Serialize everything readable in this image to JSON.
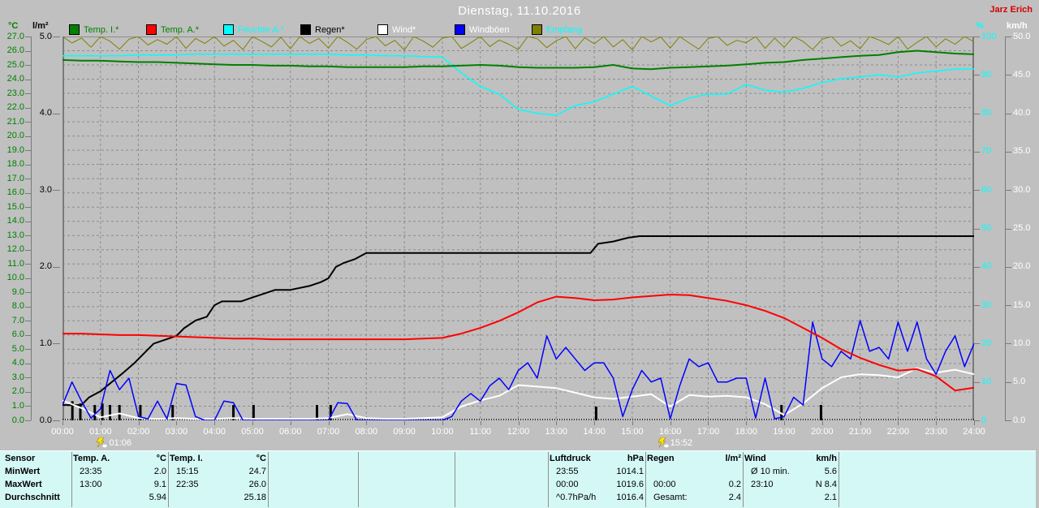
{
  "header": {
    "title": "Dienstag, 11.10.2016",
    "station": "Jarz Erich"
  },
  "legend": [
    {
      "label": "Temp. I.*",
      "swatch": "#008000",
      "text_color": "#008000"
    },
    {
      "label": "Temp. A.*",
      "swatch": "#ff0000",
      "text_color": "#008000"
    },
    {
      "label": "Feuchte A.*",
      "swatch": "#00ffff",
      "text_color": "#00ffff"
    },
    {
      "label": "Regen*",
      "swatch": "#000000",
      "text_color": "#000000"
    },
    {
      "label": "Wind*",
      "swatch": "#ffffff",
      "text_color": "#ffffff"
    },
    {
      "label": "Windböen",
      "swatch": "#0000ff",
      "text_color": "#ffffff"
    },
    {
      "label": "Empfang",
      "swatch": "#808000",
      "text_color": "#00ffff"
    }
  ],
  "chart_data": {
    "type": "line",
    "title": "Dienstag, 11.10.2016",
    "x_unit": "hours",
    "x_range": [
      0,
      24
    ],
    "grid": {
      "h_divisions": 27,
      "v_divisions": 24,
      "style": "dashed"
    },
    "axes": {
      "temp_c": {
        "unit": "°C",
        "color": "#008000",
        "min": 0,
        "max": 27,
        "labels": [
          "27.0",
          "26.0",
          "25.0",
          "24.0",
          "23.0",
          "22.0",
          "21.0",
          "20.0",
          "19.0",
          "18.0",
          "17.0",
          "16.0",
          "15.0",
          "14.0",
          "13.0",
          "12.0",
          "11.0",
          "10.0",
          "9.0",
          "8.0",
          "7.0",
          "6.0",
          "5.0",
          "4.0",
          "3.0",
          "2.0",
          "1.0",
          "0.0"
        ]
      },
      "rain_lm2": {
        "unit": "l/m²",
        "color": "#000000",
        "min": 0,
        "max": 5,
        "labels": [
          "5.0",
          "4.0",
          "3.0",
          "2.0",
          "1.0",
          "0.0"
        ]
      },
      "humidity_pct": {
        "unit": "%",
        "color": "#00ffff",
        "min": 0,
        "max": 100,
        "labels": [
          "100",
          "90",
          "80",
          "70",
          "60",
          "50",
          "40",
          "30",
          "20",
          "10",
          "0"
        ]
      },
      "wind_kmh": {
        "unit": "km/h",
        "color": "#ffffff",
        "min": 0,
        "max": 50,
        "labels": [
          "50.0",
          "45.0",
          "40.0",
          "35.0",
          "30.0",
          "25.0",
          "20.0",
          "15.0",
          "10.0",
          "5.0",
          "0.0"
        ]
      },
      "time": {
        "labels": [
          "00:00",
          "01:00",
          "02:00",
          "03:00",
          "04:00",
          "05:00",
          "06:00",
          "07:00",
          "08:00",
          "09:00",
          "10:00",
          "11:00",
          "12:00",
          "13:00",
          "14:00",
          "15:00",
          "16:00",
          "17:00",
          "18:00",
          "19:00",
          "20:00",
          "21:00",
          "22:00",
          "23:00",
          "24:00"
        ]
      }
    },
    "series": [
      {
        "name": "Empfang",
        "scale": "humidity_pct",
        "color": "#808000",
        "width": 1,
        "x_start": 0,
        "x_step": 0.25,
        "values": [
          100,
          98.3,
          99.6,
          97.2,
          100,
          98.8,
          96.7,
          99.3,
          100,
          97.8,
          99.2,
          98.0,
          100,
          96.9,
          99.5,
          98.2,
          100,
          97.5,
          99.0,
          96.6,
          100,
          98.7,
          97.3,
          99.8,
          96.8,
          100,
          98.2,
          99.5,
          97.0,
          100,
          98.5,
          96.7,
          99.2,
          100,
          97.6,
          99.0,
          96.5,
          100,
          98.8,
          97.2,
          99.6,
          100,
          96.9,
          98.4,
          100,
          97.4,
          99.1,
          98.0,
          96.6,
          100,
          99.4,
          97.1,
          98.9,
          100,
          96.8,
          99.7,
          98.1,
          100,
          97.3,
          99.2,
          96.5,
          100,
          98.6,
          99.9,
          97.0,
          100,
          98.3,
          96.7,
          99.5,
          100,
          97.7,
          99.0,
          98.4,
          100,
          96.9,
          99.6,
          97.2,
          100,
          98.7,
          96.6,
          99.3,
          100,
          97.5,
          98.9,
          96.8,
          100,
          99.1,
          97.9,
          100,
          96.7,
          98.5,
          100,
          97.3,
          99.4,
          98.0,
          100,
          98.6
        ]
      },
      {
        "name": "Feuchte A.",
        "scale": "humidity_pct",
        "color": "#00ffff",
        "width": 1.5,
        "x_start": 0,
        "x_step": 0.5,
        "values": [
          95,
          95,
          95,
          95,
          95.2,
          95.2,
          95.2,
          95.4,
          95.4,
          95.4,
          95.4,
          95.4,
          95.4,
          95.4,
          95.4,
          95.2,
          95.2,
          95.0,
          95.0,
          94.8,
          94.6,
          90.5,
          87.0,
          85.0,
          81.0,
          80.0,
          79.5,
          82.0,
          83.0,
          85.0,
          87.0,
          84.5,
          82.0,
          84.0,
          85.0,
          85.0,
          87.5,
          86.0,
          85.5,
          86.5,
          88.0,
          89.0,
          89.5,
          90.0,
          89.5,
          90.5,
          91.0,
          91.5,
          91.5
        ]
      },
      {
        "name": "Regen Summe",
        "scale": "rain_lm2",
        "color": "#000000",
        "width": 2,
        "x": [
          0,
          0.5,
          0.7,
          1.0,
          1.3,
          1.6,
          1.9,
          2.1,
          2.4,
          2.7,
          3.0,
          3.2,
          3.5,
          3.8,
          4.0,
          4.2,
          4.7,
          5.0,
          5.3,
          5.6,
          6.0,
          6.5,
          6.8,
          7.0,
          7.2,
          7.4,
          7.7,
          8.0,
          13.9,
          14.1,
          14.5,
          14.9,
          15.2,
          24
        ],
        "values": [
          0.2,
          0.2,
          0.3,
          0.38,
          0.5,
          0.62,
          0.75,
          0.85,
          1.0,
          1.05,
          1.1,
          1.2,
          1.3,
          1.35,
          1.5,
          1.55,
          1.55,
          1.6,
          1.65,
          1.7,
          1.7,
          1.75,
          1.8,
          1.85,
          2.0,
          2.05,
          2.1,
          2.18,
          2.18,
          2.3,
          2.33,
          2.38,
          2.4,
          2.4
        ]
      },
      {
        "name": "Temp. I.",
        "scale": "temp_c",
        "color": "#008000",
        "width": 2,
        "x_start": 0,
        "x_step": 0.5,
        "values": [
          25.35,
          25.3,
          25.3,
          25.25,
          25.2,
          25.2,
          25.15,
          25.1,
          25.05,
          25.0,
          25.0,
          24.95,
          24.95,
          24.9,
          24.9,
          24.85,
          24.85,
          24.85,
          24.85,
          24.9,
          24.9,
          24.95,
          25.0,
          24.95,
          24.85,
          24.8,
          24.8,
          24.8,
          24.85,
          25.0,
          24.75,
          24.7,
          24.8,
          24.85,
          24.9,
          24.95,
          25.05,
          25.15,
          25.2,
          25.35,
          25.45,
          25.55,
          25.65,
          25.7,
          25.9,
          26.0,
          25.9,
          25.8,
          25.75
        ]
      },
      {
        "name": "Wind",
        "scale": "wind_kmh",
        "color": "#ffffff",
        "width": 2,
        "x_start": 0,
        "x_step": 0.5,
        "values": [
          2.6,
          1.6,
          0.4,
          0.9,
          0.3,
          0.2,
          0.3,
          0.2,
          0.2,
          0.3,
          0.2,
          0.2,
          0.2,
          0.2,
          0.3,
          0.8,
          0.3,
          0.2,
          0.2,
          0.3,
          0.4,
          1.8,
          2.6,
          3.2,
          4.6,
          4.4,
          4.2,
          3.6,
          3.0,
          2.8,
          3.1,
          3.4,
          1.8,
          3.3,
          3.1,
          3.2,
          3.0,
          2.1,
          0.7,
          2.2,
          4.2,
          5.6,
          6.0,
          5.9,
          5.6,
          6.8,
          6.2,
          6.6,
          6.0
        ]
      },
      {
        "name": "Windböen",
        "scale": "wind_kmh",
        "color": "#0000ff",
        "width": 1.5,
        "x_start": 0,
        "x_step": 0.25,
        "values": [
          2,
          5,
          2.5,
          0.3,
          1.5,
          6.5,
          4,
          5.5,
          0.5,
          0.2,
          2.5,
          0.2,
          4.8,
          4.6,
          0.5,
          0,
          0,
          2.5,
          2.3,
          0,
          0,
          0,
          0,
          0,
          0,
          0,
          0,
          0,
          0,
          2.3,
          2.2,
          0,
          0,
          0,
          0,
          0,
          0,
          0,
          0,
          0,
          0,
          0.5,
          2.5,
          3.5,
          2.5,
          4.5,
          5.5,
          4,
          6.5,
          7.5,
          5.5,
          11,
          8,
          9.5,
          8,
          6.5,
          7.5,
          7.5,
          5.5,
          0.5,
          4,
          6.5,
          5,
          5.5,
          0.2,
          4.5,
          8,
          7,
          7.5,
          5,
          5,
          5.5,
          5.5,
          0.3,
          5.5,
          0.2,
          0.5,
          3,
          2,
          12.8,
          8,
          7,
          9,
          8,
          13,
          9,
          9.5,
          8,
          12.8,
          9,
          12.8,
          8,
          6,
          9,
          11,
          7,
          10
        ]
      },
      {
        "name": "Temp. A.",
        "scale": "temp_c",
        "color": "#ff0000",
        "width": 2,
        "x_start": 0,
        "x_step": 0.5,
        "values": [
          6.1,
          6.1,
          6.05,
          6.0,
          6.0,
          5.95,
          5.9,
          5.85,
          5.8,
          5.75,
          5.75,
          5.7,
          5.7,
          5.7,
          5.7,
          5.7,
          5.7,
          5.7,
          5.7,
          5.75,
          5.8,
          6.1,
          6.5,
          7.0,
          7.6,
          8.3,
          8.7,
          8.6,
          8.45,
          8.5,
          8.65,
          8.75,
          8.85,
          8.8,
          8.6,
          8.4,
          8.1,
          7.7,
          7.2,
          6.5,
          5.8,
          5.0,
          4.4,
          3.9,
          3.5,
          3.6,
          3.1,
          2.1,
          2.3
        ]
      }
    ],
    "rain_bars": {
      "scale": "rain_lm2",
      "color": "#000000",
      "hours": [
        0.26,
        0.47,
        0.85,
        1.05,
        1.25,
        1.5,
        2.05,
        2.9,
        4.5,
        5.03,
        6.7,
        7.06,
        14.05,
        18.93,
        19.97
      ],
      "amounts": [
        0.25,
        0.22,
        0.2,
        0.22,
        0.2,
        0.2,
        0.2,
        0.2,
        0.2,
        0.2,
        0.2,
        0.2,
        0.18,
        0.2,
        0.2
      ]
    },
    "markers": [
      {
        "time": "01:06",
        "hour": 1.1,
        "icon": "lightning-icon"
      },
      {
        "time": "15:52",
        "hour": 15.87,
        "icon": "lightning-icon"
      }
    ]
  },
  "bottom_table": {
    "row_labels": [
      "Sensor",
      "MinWert",
      "MaxWert",
      "Durchschnitt"
    ],
    "columns": [
      {
        "title": "Temp. A.",
        "unit": "°C",
        "rows": [
          [
            "23:35",
            "2.0"
          ],
          [
            "13:00",
            "9.1"
          ],
          [
            "",
            "5.94"
          ]
        ]
      },
      {
        "title": "Temp. I.",
        "unit": "°C",
        "rows": [
          [
            "15:15",
            "24.7"
          ],
          [
            "22:35",
            "26.0"
          ],
          [
            "",
            "25.18"
          ]
        ]
      },
      {
        "title": "",
        "unit": "",
        "rows": [
          [
            "",
            ""
          ],
          [
            "",
            ""
          ],
          [
            "",
            ""
          ]
        ]
      },
      {
        "title": "",
        "unit": "",
        "rows": [
          [
            "",
            ""
          ],
          [
            "",
            ""
          ],
          [
            "",
            ""
          ]
        ]
      },
      {
        "title": "",
        "unit": "",
        "rows": [
          [
            "",
            ""
          ],
          [
            "",
            ""
          ],
          [
            "",
            ""
          ]
        ]
      },
      {
        "title": "Luftdruck",
        "unit": "hPa",
        "rows": [
          [
            "23:55",
            "1014.1"
          ],
          [
            "00:00",
            "1019.6"
          ],
          [
            "^0.7hPa/h",
            "1016.4"
          ]
        ]
      },
      {
        "title": "Regen",
        "unit": "l/m²",
        "rows": [
          [
            "",
            ""
          ],
          [
            "00:00",
            "0.2"
          ],
          [
            "Gesamt:",
            "2.4"
          ]
        ]
      },
      {
        "title": "Wind",
        "unit": "km/h",
        "rows": [
          [
            "Ø 10 min.",
            "5.6"
          ],
          [
            "23:10",
            "N 8.4"
          ],
          [
            "",
            "2.1"
          ]
        ]
      },
      {
        "title": "",
        "unit": "",
        "rows": [
          [
            "",
            ""
          ],
          [
            "",
            ""
          ],
          [
            "",
            ""
          ]
        ]
      }
    ]
  }
}
